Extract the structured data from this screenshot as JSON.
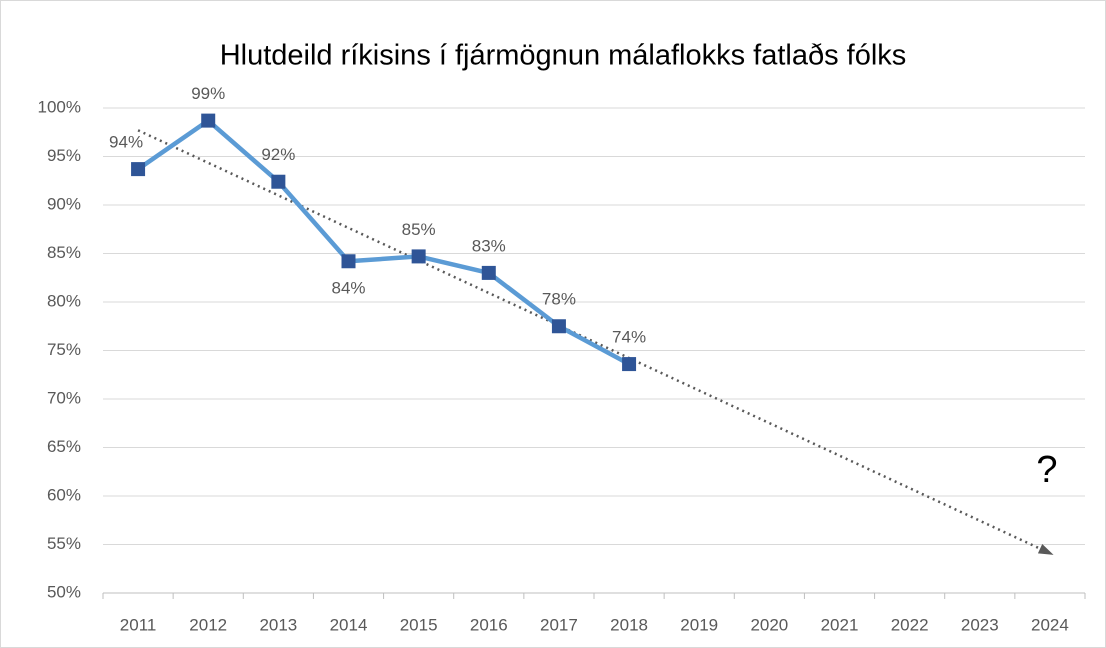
{
  "chart_data": {
    "type": "line",
    "title": "Hlutdeild ríkisins í fjármögnun málaflokks fatlaðs fólks",
    "categories": [
      "2011",
      "2012",
      "2013",
      "2014",
      "2015",
      "2016",
      "2017",
      "2018",
      "2019",
      "2020",
      "2021",
      "2022",
      "2023",
      "2024"
    ],
    "series": [
      {
        "name": "Hlutdeild",
        "color": "#5b9bd5",
        "marker_color": "#2f5597",
        "values": [
          93.7,
          98.7,
          92.4,
          84.2,
          84.7,
          83.0,
          77.5,
          73.6,
          null,
          null,
          null,
          null,
          null,
          null
        ],
        "value_labels": [
          "94%",
          "99%",
          "92%",
          "84%",
          "85%",
          "83%",
          "78%",
          "74%",
          null,
          null,
          null,
          null,
          null,
          null
        ]
      }
    ],
    "trendline": {
      "from": 97.7,
      "to": 54.1,
      "color": "#595959"
    },
    "annotation": "?",
    "ylim": [
      50,
      100
    ],
    "yticks": [
      {
        "value": 50,
        "label": "50%"
      },
      {
        "value": 55,
        "label": "55%"
      },
      {
        "value": 60,
        "label": "60%"
      },
      {
        "value": 65,
        "label": "65%"
      },
      {
        "value": 70,
        "label": "70%"
      },
      {
        "value": 75,
        "label": "75%"
      },
      {
        "value": 80,
        "label": "80%"
      },
      {
        "value": 85,
        "label": "85%"
      },
      {
        "value": 90,
        "label": "90%"
      },
      {
        "value": 95,
        "label": "95%"
      },
      {
        "value": 100,
        "label": "100%"
      }
    ],
    "grid": true
  }
}
